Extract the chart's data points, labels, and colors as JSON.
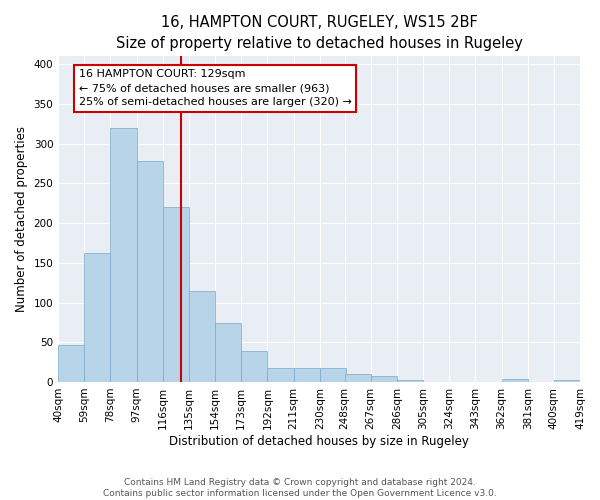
{
  "title": "16, HAMPTON COURT, RUGELEY, WS15 2BF",
  "subtitle": "Size of property relative to detached houses in Rugeley",
  "xlabel": "Distribution of detached houses by size in Rugeley",
  "ylabel": "Number of detached properties",
  "bar_color": "#b8d4e8",
  "bar_edge_color": "#7aaac8",
  "vline_x": 129,
  "vline_color": "#cc0000",
  "annotation_title": "16 HAMPTON COURT: 129sqm",
  "annotation_line1": "← 75% of detached houses are smaller (963)",
  "annotation_line2": "25% of semi-detached houses are larger (320) →",
  "annotation_box_color": "white",
  "annotation_box_edge": "#cc0000",
  "bins": [
    40,
    59,
    78,
    97,
    116,
    135,
    154,
    173,
    192,
    211,
    230,
    248,
    267,
    286,
    305,
    324,
    343,
    362,
    381,
    400,
    419
  ],
  "counts": [
    47,
    163,
    320,
    278,
    220,
    114,
    74,
    39,
    18,
    18,
    17,
    10,
    7,
    3,
    0,
    0,
    0,
    4,
    0,
    3
  ],
  "ylim": [
    0,
    410
  ],
  "yticks": [
    0,
    50,
    100,
    150,
    200,
    250,
    300,
    350,
    400
  ],
  "footer_line1": "Contains HM Land Registry data © Crown copyright and database right 2024.",
  "footer_line2": "Contains public sector information licensed under the Open Government Licence v3.0.",
  "background_color": "#e8eef4",
  "title_fontsize": 10.5,
  "subtitle_fontsize": 9,
  "axis_label_fontsize": 8.5,
  "tick_fontsize": 7.5,
  "footer_fontsize": 6.5,
  "annot_fontsize": 8
}
